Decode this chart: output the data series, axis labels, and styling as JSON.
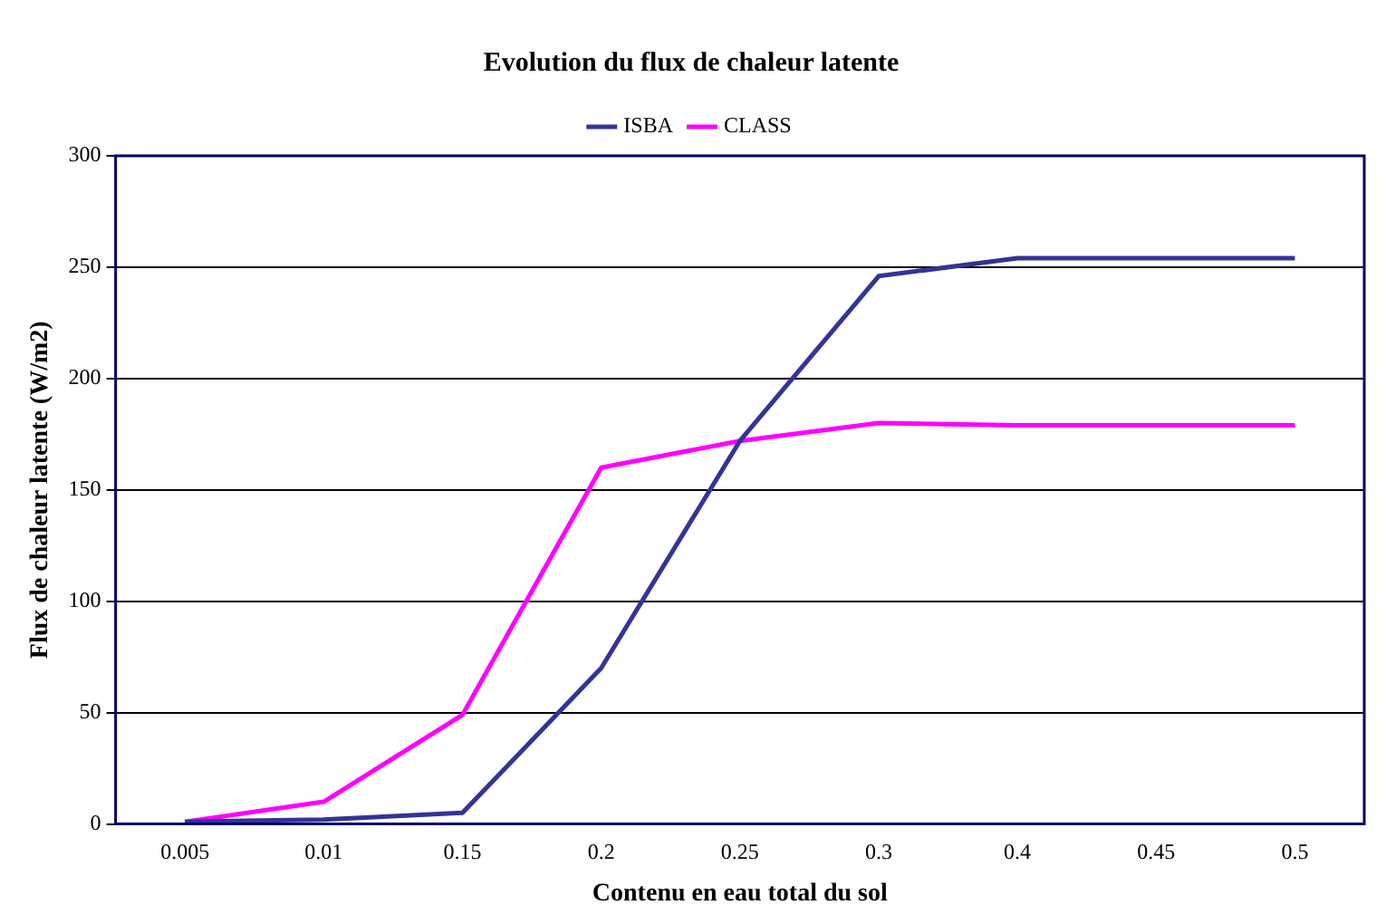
{
  "chart_data": {
    "type": "line",
    "title": "Evolution du flux de chaleur latente",
    "xlabel": "Contenu en eau total du sol",
    "ylabel": "Flux de chaleur latente (W/m2)",
    "categories": [
      "0.005",
      "0.01",
      "0.15",
      "0.2",
      "0.25",
      "0.3",
      "0.4",
      "0.45",
      "0.5"
    ],
    "series": [
      {
        "name": "ISBA",
        "color": "#333399",
        "values": [
          1,
          2,
          5,
          70,
          172,
          246,
          254,
          254,
          254
        ]
      },
      {
        "name": "CLASS",
        "color": "#ff00ff",
        "values": [
          1,
          10,
          49,
          160,
          172,
          180,
          179,
          179,
          179
        ]
      }
    ],
    "ylim": [
      0,
      300
    ],
    "yticks": [
      0,
      50,
      100,
      150,
      200,
      250,
      300
    ],
    "grid": "y",
    "legend": "top",
    "marker": "none",
    "line_style": "solid"
  }
}
